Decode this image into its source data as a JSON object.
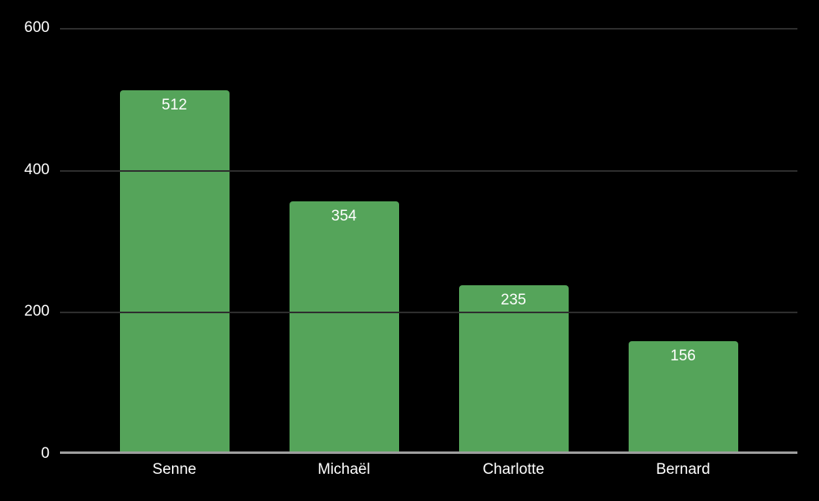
{
  "chart_data": {
    "type": "bar",
    "title": "",
    "xlabel": "",
    "ylabel": "",
    "categories": [
      "Senne",
      "Michaël",
      "Charlotte",
      "Bernard"
    ],
    "values": [
      512,
      354,
      235,
      156
    ],
    "yticks": [
      0,
      200,
      400,
      600
    ],
    "ylim": [
      0,
      600
    ],
    "grid": true,
    "legend": "none",
    "colors": {
      "background": "#000000",
      "bar_fill": "#55a45a",
      "value_label": "#ffffff",
      "tick_label": "#ffffff",
      "category_label": "#ffffff",
      "gridline": "#2e2e2e",
      "baseline": "#9e9e9e"
    }
  }
}
